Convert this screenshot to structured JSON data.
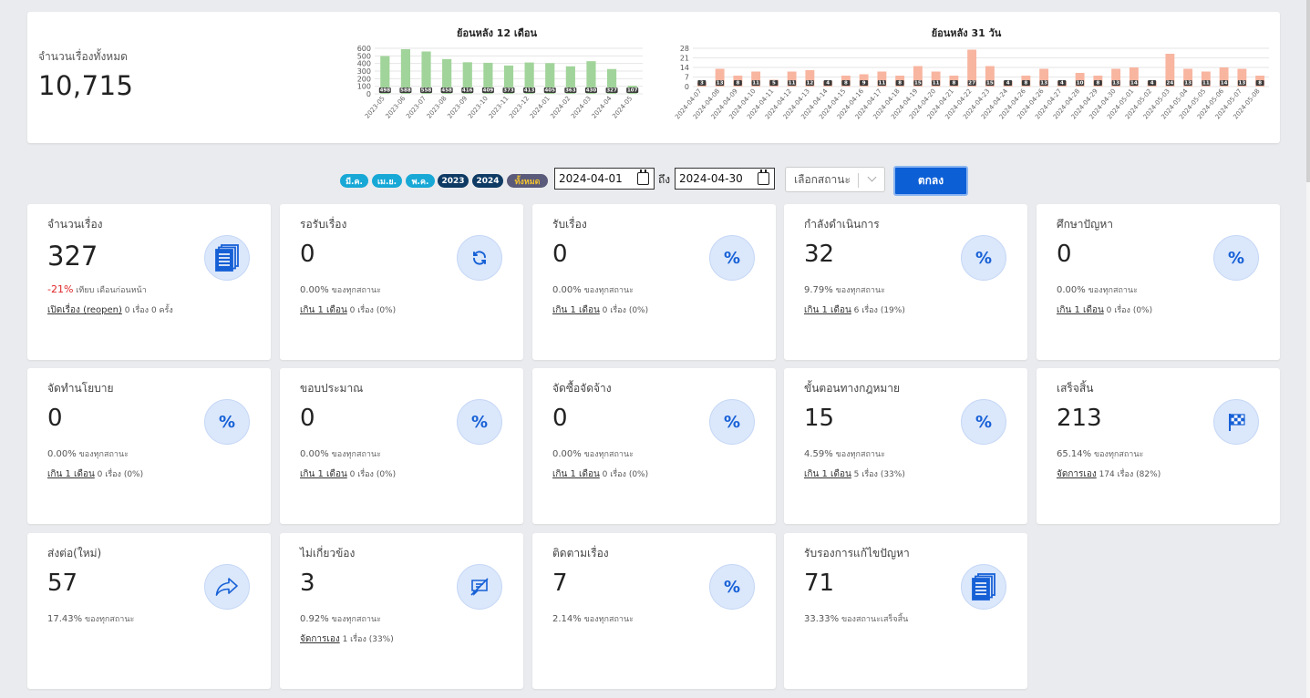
{
  "summary": {
    "total_label": "จำนวนเรื่องทั้งหมด",
    "total_value": "10,715"
  },
  "chart_data": [
    {
      "type": "bar",
      "title": "ย้อนหลัง 12 เดือน",
      "categories": [
        "2023-05",
        "2023-06",
        "2023-07",
        "2023-08",
        "2023-09",
        "2023-10",
        "2023-11",
        "2023-12",
        "2024-01",
        "2024-02",
        "2024-03",
        "2024-04",
        "2024-05"
      ],
      "values": [
        498,
        588,
        558,
        458,
        416,
        409,
        373,
        413,
        405,
        363,
        430,
        327,
        107
      ],
      "yticks": [
        "0",
        "100",
        "200",
        "300",
        "400",
        "500",
        "600"
      ],
      "ylim": [
        0,
        600
      ],
      "color": "#a1d49a",
      "grid": true
    },
    {
      "type": "bar",
      "title": "ย้อนหลัง 31 วัน",
      "categories": [
        "2024-04-07",
        "2024-04-08",
        "2024-04-09",
        "2024-04-10",
        "2024-04-11",
        "2024-04-12",
        "2024-04-13",
        "2024-04-14",
        "2024-04-15",
        "2024-04-16",
        "2024-04-17",
        "2024-04-18",
        "2024-04-19",
        "2024-04-20",
        "2024-04-21",
        "2024-04-22",
        "2024-04-23",
        "2024-04-24",
        "2024-04-26",
        "2024-04-26",
        "2024-04-27",
        "2024-04-28",
        "2024-04-29",
        "2024-04-30",
        "2024-05-01",
        "2024-05-02",
        "2024-05-03",
        "2024-05-04",
        "2024-05-05",
        "2024-05-06",
        "2024-05-07",
        "2024-05-08"
      ],
      "values": [
        3,
        13,
        8,
        11,
        5,
        11,
        12,
        4,
        8,
        9,
        11,
        8,
        15,
        11,
        8,
        27,
        15,
        4,
        8,
        13,
        4,
        10,
        8,
        13,
        14,
        4,
        24,
        13,
        11,
        14,
        13,
        8
      ],
      "yticks": [
        "0",
        "7",
        "14",
        "21",
        "28"
      ],
      "ylim": [
        0,
        28
      ],
      "color": "#f8b5a0",
      "grid": true
    }
  ],
  "filters": {
    "pills": [
      "มี.ค.",
      "เม.ย.",
      "พ.ค.",
      "2023",
      "2024",
      "ทั้งหมด"
    ],
    "date_from": "2024-04-01",
    "to_label": "ถึง",
    "date_to": "2024-04-30",
    "status_placeholder": "เลือกสถานะ",
    "submit_label": "ตกลง"
  },
  "cards": [
    {
      "title": "จำนวนเรื่อง",
      "value": "327",
      "icon": "document-stack-icon",
      "pct_red": "-21%",
      "pct_text": " เทียบ เดือนก่อนหน้า",
      "link": "เปิดเรื่อง (reopen)",
      "sub_text": " 0 เรื่อง 0 ครั้ง"
    },
    {
      "title": "รอรับเรื่อง",
      "value": "0",
      "icon": "refresh-icon",
      "pct_num": "0.00%",
      "pct_text": " ของทุกสถานะ",
      "link": "เกิน 1 เดือน",
      "sub_text": " 0 เรื่อง (0%)"
    },
    {
      "title": "รับเรื่อง",
      "value": "0",
      "icon": "percent-icon",
      "pct_num": "0.00%",
      "pct_text": " ของทุกสถานะ",
      "link": "เกิน 1 เดือน",
      "sub_text": " 0 เรื่อง (0%)"
    },
    {
      "title": "กำลังดำเนินการ",
      "value": "32",
      "icon": "percent-icon",
      "pct_num": "9.79%",
      "pct_text": " ของทุกสถานะ",
      "link": "เกิน 1 เดือน",
      "sub_text": " 6 เรื่อง (19%)"
    },
    {
      "title": "ศึกษาปัญหา",
      "value": "0",
      "icon": "percent-icon",
      "pct_num": "0.00%",
      "pct_text": " ของทุกสถานะ",
      "link": "เกิน 1 เดือน",
      "sub_text": " 0 เรื่อง (0%)"
    },
    {
      "title": "จัดทำนโยบาย",
      "value": "0",
      "icon": "percent-icon",
      "pct_num": "0.00%",
      "pct_text": " ของทุกสถานะ",
      "link": "เกิน 1 เดือน",
      "sub_text": " 0 เรื่อง (0%)"
    },
    {
      "title": "ขอบประมาณ",
      "value": "0",
      "icon": "percent-icon",
      "pct_num": "0.00%",
      "pct_text": " ของทุกสถานะ",
      "link": "เกิน 1 เดือน",
      "sub_text": " 0 เรื่อง (0%)"
    },
    {
      "title": "จัดซื้อจัดจ้าง",
      "value": "0",
      "icon": "percent-icon",
      "pct_num": "0.00%",
      "pct_text": " ของทุกสถานะ",
      "link": "เกิน 1 เดือน",
      "sub_text": " 0 เรื่อง (0%)"
    },
    {
      "title": "ขั้นตอนทางกฎหมาย",
      "value": "15",
      "icon": "percent-icon",
      "pct_num": "4.59%",
      "pct_text": " ของทุกสถานะ",
      "link": "เกิน 1 เดือน",
      "sub_text": " 5 เรื่อง (33%)"
    },
    {
      "title": "เสร็จสิ้น",
      "value": "213",
      "icon": "checkered-flag-icon",
      "pct_num": "65.14%",
      "pct_text": " ของทุกสถานะ",
      "link": "จัดการเอง",
      "sub_text": " 174 เรื่อง (82%)"
    },
    {
      "title": "ส่งต่อ(ใหม่)",
      "value": "57",
      "icon": "share-arrow-icon",
      "pct_num": "17.43%",
      "pct_text": " ของทุกสถานะ",
      "link": "",
      "sub_text": ""
    },
    {
      "title": "ไม่เกี่ยวข้อง",
      "value": "3",
      "icon": "no-chat-icon",
      "pct_num": "0.92%",
      "pct_text": " ของทุกสถานะ",
      "link": "จัดการเอง",
      "sub_text": " 1 เรื่อง (33%)"
    },
    {
      "title": "ติดตามเรื่อง",
      "value": "7",
      "icon": "percent-icon",
      "pct_num": "2.14%",
      "pct_text": " ของทุกสถานะ",
      "link": "",
      "sub_text": ""
    },
    {
      "title": "รับรองการแก้ไขปัญหา",
      "value": "71",
      "icon": "document-stack-icon",
      "pct_num": "33.33%",
      "pct_text": " ของสถานะเสร็จสิ้น",
      "link": "",
      "sub_text": ""
    }
  ]
}
